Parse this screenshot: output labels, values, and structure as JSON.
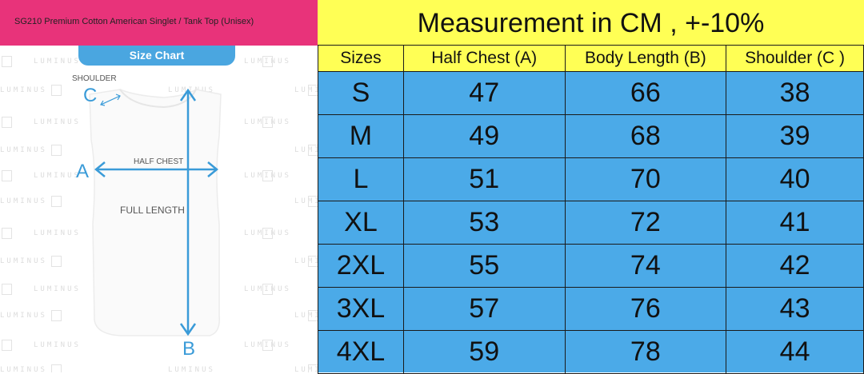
{
  "product_title": "SG210 Premium Cotton American Singlet / Tank Top (Unisex)",
  "size_chart_label": "Size Chart",
  "diagram": {
    "shoulder_label": "SHOULDER",
    "shoulder_letter": "C",
    "half_chest_label": "HALF CHEST",
    "half_chest_letter": "A",
    "full_length_label": "FULL LENGTH",
    "full_length_letter": "B"
  },
  "watermark_text": "LUMINUS",
  "measurement_title": "Measurement in CM , +-10%",
  "table": {
    "headers": [
      "Sizes",
      "Half Chest (A)",
      "Body Length (B)",
      "Shoulder (C )"
    ],
    "rows": [
      [
        "S",
        "47",
        "66",
        "38"
      ],
      [
        "M",
        "49",
        "68",
        "39"
      ],
      [
        "L",
        "51",
        "70",
        "40"
      ],
      [
        "XL",
        "53",
        "72",
        "41"
      ],
      [
        "2XL",
        "55",
        "74",
        "42"
      ],
      [
        "3XL",
        "57",
        "76",
        "43"
      ],
      [
        "4XL",
        "59",
        "78",
        "44"
      ]
    ]
  },
  "colors": {
    "title_bar": "#e8337a",
    "pill": "#4aa6e0",
    "table_header": "#ffff55",
    "table_body": "#4baae8",
    "arrow": "#3a9bd8"
  }
}
